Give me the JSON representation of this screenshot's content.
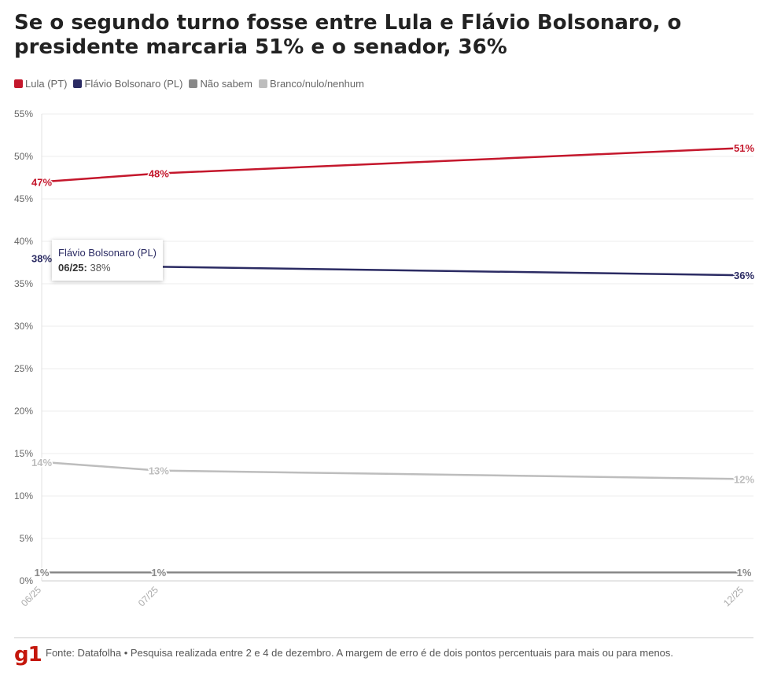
{
  "chart_data": {
    "type": "line",
    "title": "Se o segundo turno fosse entre Lula e Flávio Bolsonaro, o presidente marcaria 51% e o senador, 36%",
    "x": [
      "06/25",
      "07/25",
      "12/25"
    ],
    "x_positions_months": [
      0,
      1,
      6
    ],
    "series": [
      {
        "name": "Lula (PT)",
        "color": "#c4172c",
        "values": [
          47,
          48,
          51
        ],
        "labels": [
          "47%",
          "48%",
          "51%"
        ]
      },
      {
        "name": "Flávio Bolsonaro (PL)",
        "color": "#2b2b63",
        "values": [
          38,
          37,
          36
        ],
        "labels": [
          "38%",
          "",
          "36%"
        ]
      },
      {
        "name": "Não sabem",
        "color": "#888888",
        "values": [
          1,
          1,
          1
        ],
        "labels": [
          "1%",
          "1%",
          "1%"
        ]
      },
      {
        "name": "Branco/nulo/nenhum",
        "color": "#bdbdbd",
        "values": [
          14,
          13,
          12
        ],
        "labels": [
          "14%",
          "13%",
          "12%"
        ]
      }
    ],
    "ylim": [
      0,
      55
    ],
    "yticks": [
      "0%",
      "5%",
      "10%",
      "15%",
      "20%",
      "25%",
      "30%",
      "35%",
      "40%",
      "45%",
      "50%",
      "55%"
    ],
    "grid": true,
    "legend": "top-left",
    "tooltip": {
      "series": "Flávio Bolsonaro (PL)",
      "key": "06/25:",
      "value": "38%"
    }
  },
  "footer": {
    "logo": "g1",
    "source": "Fonte: Datafolha • Pesquisa realizada entre 2 e 4 de dezembro. A margem de erro é de dois pontos percentuais para mais ou para menos."
  }
}
